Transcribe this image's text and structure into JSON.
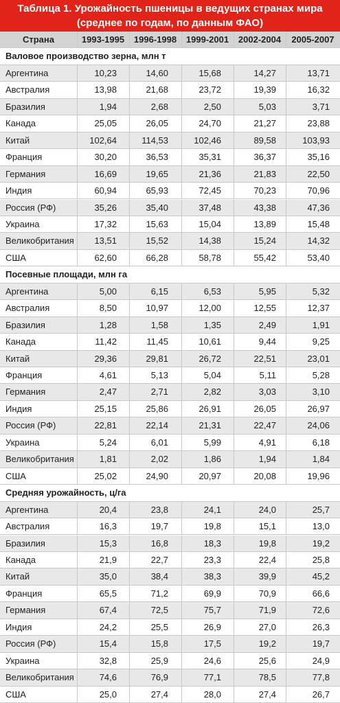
{
  "title": [
    "Таблица 1. Урожайность пшеницы в ведущих странах мира",
    "(среднее по годам, по данным ФАО)"
  ],
  "header": [
    "Страна",
    "1993-1995",
    "1996-1998",
    "1999-2001",
    "2002-2004",
    "2005-2007"
  ],
  "sections": [
    {
      "title": "Валовое производство зерна, млн т",
      "rows": [
        [
          "Аргентина",
          "10,23",
          "14,60",
          "15,68",
          "14,27",
          "13,71"
        ],
        [
          "Австралия",
          "13,98",
          "21,68",
          "23,72",
          "19,39",
          "16,32"
        ],
        [
          "Бразилия",
          "1,94",
          "2,68",
          "2,50",
          "5,03",
          "3,71"
        ],
        [
          "Канада",
          "25,05",
          "26,05",
          "24,70",
          "21,27",
          "23,88"
        ],
        [
          "Китай",
          "102,64",
          "114,53",
          "102,46",
          "89,58",
          "103,93"
        ],
        [
          "Франция",
          "30,20",
          "36,53",
          "35,31",
          "36,37",
          "35,16"
        ],
        [
          "Германия",
          "16,69",
          "19,65",
          "21,36",
          "21,83",
          "22,50"
        ],
        [
          "Индия",
          "60,94",
          "65,93",
          "72,45",
          "70,23",
          "70,96"
        ],
        [
          "Россия (РФ)",
          "35,26",
          "35,40",
          "37,48",
          "43,38",
          "47,36"
        ],
        [
          "Украина",
          "17,32",
          "15,63",
          "15,04",
          "13,89",
          "15,48"
        ],
        [
          "Великобритания",
          "13,51",
          "15,52",
          "14,38",
          "15,24",
          "14,32"
        ],
        [
          "США",
          "62,60",
          "66,28",
          "58,78",
          "55,42",
          "53,40"
        ]
      ]
    },
    {
      "title": "Посевные площади, млн га",
      "rows": [
        [
          "Аргентина",
          "5,00",
          "6,15",
          "6,53",
          "5,95",
          "5,32"
        ],
        [
          "Австралия",
          "8,50",
          "10,97",
          "12,00",
          "12,55",
          "12,37"
        ],
        [
          "Бразилия",
          "1,28",
          "1,58",
          "1,35",
          "2,49",
          "1,91"
        ],
        [
          "Канада",
          "11,42",
          "11,45",
          "10,61",
          "9,44",
          "9,25"
        ],
        [
          "Китай",
          "29,36",
          "29,81",
          "26,72",
          "22,51",
          "23,01"
        ],
        [
          "Франция",
          "4,61",
          "5,13",
          "5,04",
          "5,11",
          "5,28"
        ],
        [
          "Германия",
          "2,47",
          "2,71",
          "2,82",
          "3,03",
          "3,10"
        ],
        [
          "Индия",
          "25,15",
          "25,86",
          "26,91",
          "26,05",
          "26,97"
        ],
        [
          "Россия (РФ)",
          "22,81",
          "22,14",
          "21,31",
          "22,47",
          "24,06"
        ],
        [
          "Украина",
          "5,24",
          "6,01",
          "5,99",
          "4,91",
          "6,18"
        ],
        [
          "Великобритания",
          "1,81",
          "2,02",
          "1,86",
          "1,94",
          "1,84"
        ],
        [
          "США",
          "25,02",
          "24,90",
          "20,97",
          "20,08",
          "19,96"
        ]
      ]
    },
    {
      "title": "Средняя урожайность, ц/га",
      "rows": [
        [
          "Аргентина",
          "20,4",
          "23,8",
          "24,1",
          "24,0",
          "25,7"
        ],
        [
          "Австралия",
          "16,3",
          "19,7",
          "19,8",
          "15,1",
          "13,0"
        ],
        [
          "Бразилия",
          "15,3",
          "16,8",
          "18,3",
          "19,8",
          "19,2"
        ],
        [
          "Канада",
          "21,9",
          "22,7",
          "23,3",
          "22,4",
          "25,8"
        ],
        [
          "Китай",
          "35,0",
          "38,4",
          "38,3",
          "39,9",
          "45,2"
        ],
        [
          "Франция",
          "65,5",
          "71,2",
          "69,9",
          "70,9",
          "66,6"
        ],
        [
          "Германия",
          "67,4",
          "72,5",
          "75,7",
          "71,9",
          "72,6"
        ],
        [
          "Индия",
          "24,2",
          "25,5",
          "26,9",
          "27,0",
          "26,3"
        ],
        [
          "Россия (РФ)",
          "15,4",
          "15,8",
          "17,5",
          "19,2",
          "19,7"
        ],
        [
          "Украина",
          "32,8",
          "25,9",
          "24,6",
          "25,6",
          "24,9"
        ],
        [
          "Великобритания",
          "74,6",
          "76,9",
          "77,1",
          "78,5",
          "77,8"
        ],
        [
          "США",
          "25,0",
          "27,4",
          "28,0",
          "27,4",
          "26,7"
        ]
      ]
    }
  ]
}
